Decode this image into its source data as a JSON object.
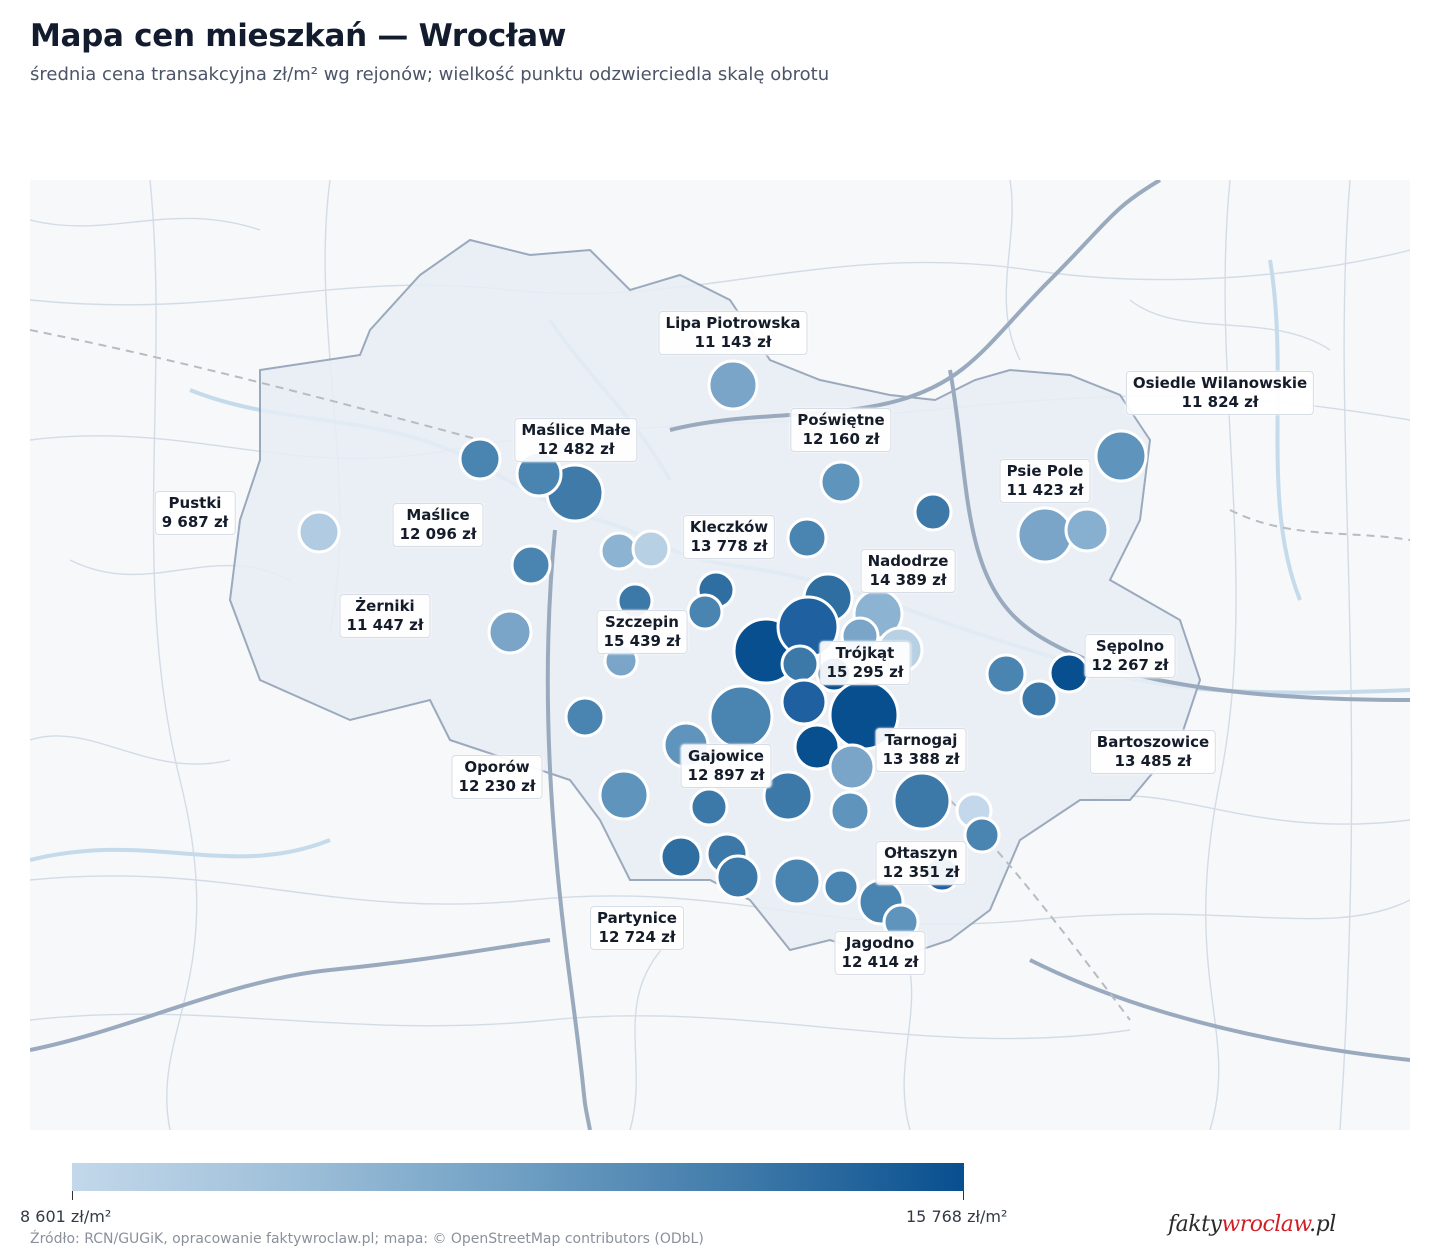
{
  "title": "Mapa cen mieszkań — Wrocław",
  "subtitle": "średnia cena transakcyjna zł/m² wg rejonów; wielkość punktu odzwierciedla skalę obrotu",
  "colors": {
    "min": "#c3d8ea",
    "max": "#084f8f",
    "city_fill": "#e6edf5",
    "boundary": "#8c9cb3"
  },
  "legend": {
    "min_label": "8 601 zł/m²",
    "max_label": "15 768 zł/m²",
    "min_value": 8601,
    "max_value": 15768
  },
  "districts": [
    {
      "name": "Lipa Piotrowska",
      "price": "11 143 zł",
      "value": 11143
    },
    {
      "name": "Osiedle Wilanowskie",
      "price": "11 824 zł",
      "value": 11824
    },
    {
      "name": "Maślice Małe",
      "price": "12 482 zł",
      "value": 12482
    },
    {
      "name": "Poświętne",
      "price": "12 160 zł",
      "value": 12160
    },
    {
      "name": "Psie Pole",
      "price": "11 423 zł",
      "value": 11423
    },
    {
      "name": "Pustki",
      "price": "9 687 zł",
      "value": 9687
    },
    {
      "name": "Maślice",
      "price": "12 096 zł",
      "value": 12096
    },
    {
      "name": "Kleczków",
      "price": "13 778 zł",
      "value": 13778
    },
    {
      "name": "Nadodrze",
      "price": "14 389 zł",
      "value": 14389
    },
    {
      "name": "Żerniki",
      "price": "11 447 zł",
      "value": 11447
    },
    {
      "name": "Szczepin",
      "price": "15 439 zł",
      "value": 15439
    },
    {
      "name": "Sępolno",
      "price": "12 267 zł",
      "value": 12267
    },
    {
      "name": "Trójkąt",
      "price": "15 295 zł",
      "value": 15295
    },
    {
      "name": "Tarnogaj",
      "price": "13 388 zł",
      "value": 13388
    },
    {
      "name": "Bartoszowice",
      "price": "13 485 zł",
      "value": 13485
    },
    {
      "name": "Oporów",
      "price": "12 230 zł",
      "value": 12230
    },
    {
      "name": "Gajowice",
      "price": "12 897 zł",
      "value": 12897
    },
    {
      "name": "Ołtaszyn",
      "price": "12 351 zł",
      "value": 12351
    },
    {
      "name": "Partynice",
      "price": "12 724 zł",
      "value": 12724
    },
    {
      "name": "Jagodno",
      "price": "12 414 zł",
      "value": 12414
    }
  ],
  "source": "Źródło: RCN/GUGiK, opracowanie faktywroclaw.pl; mapa: © OpenStreetMap contributors (ODbL)",
  "logo": {
    "part1": "fakty",
    "part2": "wroclaw",
    "part3": ".pl"
  }
}
